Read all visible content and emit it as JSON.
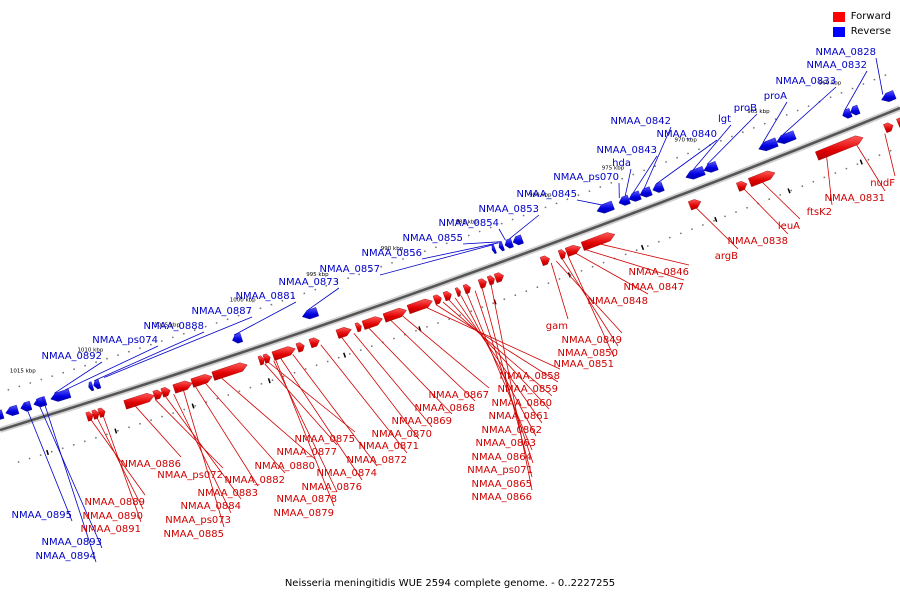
{
  "legend": {
    "forward_label": "Forward",
    "reverse_label": "Reverse",
    "forward_color": "#ff0000",
    "reverse_color": "#0000ff"
  },
  "caption": "Neisseria meningitidis WUE 2594 complete genome. - 0..2227255",
  "scale_labels": [
    "1015 kbp",
    "1010 kbp",
    "1005 kbp",
    "1000 kbp",
    "995 kbp",
    "990 kbp",
    "985 kbp",
    "980 kbp",
    "975 kbp",
    "970 kbp",
    "965 kbp",
    "960 kbp"
  ],
  "reverse_genes": [
    "NMAA_0895",
    "NMAA_0893",
    "NMAA_0894",
    "NMAA_0892",
    "NMAA_ps074",
    "NMAA_0888",
    "NMAA_0887",
    "NMAA_0881",
    "NMAA_0873",
    "NMAA_0857",
    "NMAA_0856",
    "NMAA_0855",
    "NMAA_0854",
    "NMAA_0853",
    "NMAA_0845",
    "NMAA_ps070",
    "hda",
    "NMAA_0843",
    "NMAA_0842",
    "NMAA_0840",
    "lgt",
    "proB",
    "proA",
    "NMAA_0833",
    "NMAA_0832",
    "NMAA_0828"
  ],
  "forward_genes": [
    "NMAA_0889",
    "NMAA_0890",
    "NMAA_0891",
    "NMAA_0886",
    "NMAA_ps072",
    "NMAA_0884",
    "NMAA_ps073",
    "NMAA_0885",
    "NMAA_0883",
    "NMAA_0882",
    "NMAA_0880",
    "NMAA_0877",
    "NMAA_0875",
    "NMAA_0878",
    "NMAA_0879",
    "NMAA_0876",
    "NMAA_0874",
    "NMAA_0872",
    "NMAA_0871",
    "NMAA_0870",
    "NMAA_0869",
    "NMAA_0868",
    "NMAA_0867",
    "NMAA_0858",
    "NMAA_0859",
    "NMAA_0860",
    "NMAA_0861",
    "NMAA_0862",
    "NMAA_0863",
    "NMAA_0864",
    "NMAA_ps071",
    "NMAA_0865",
    "NMAA_0866",
    "gam",
    "NMAA_0849",
    "NMAA_0850",
    "NMAA_0851",
    "NMAA_0848",
    "NMAA_0847",
    "NMAA_0846",
    "argB",
    "NMAA_0838",
    "leuA",
    "ftsK2",
    "NMAA_0831",
    "nudF"
  ]
}
